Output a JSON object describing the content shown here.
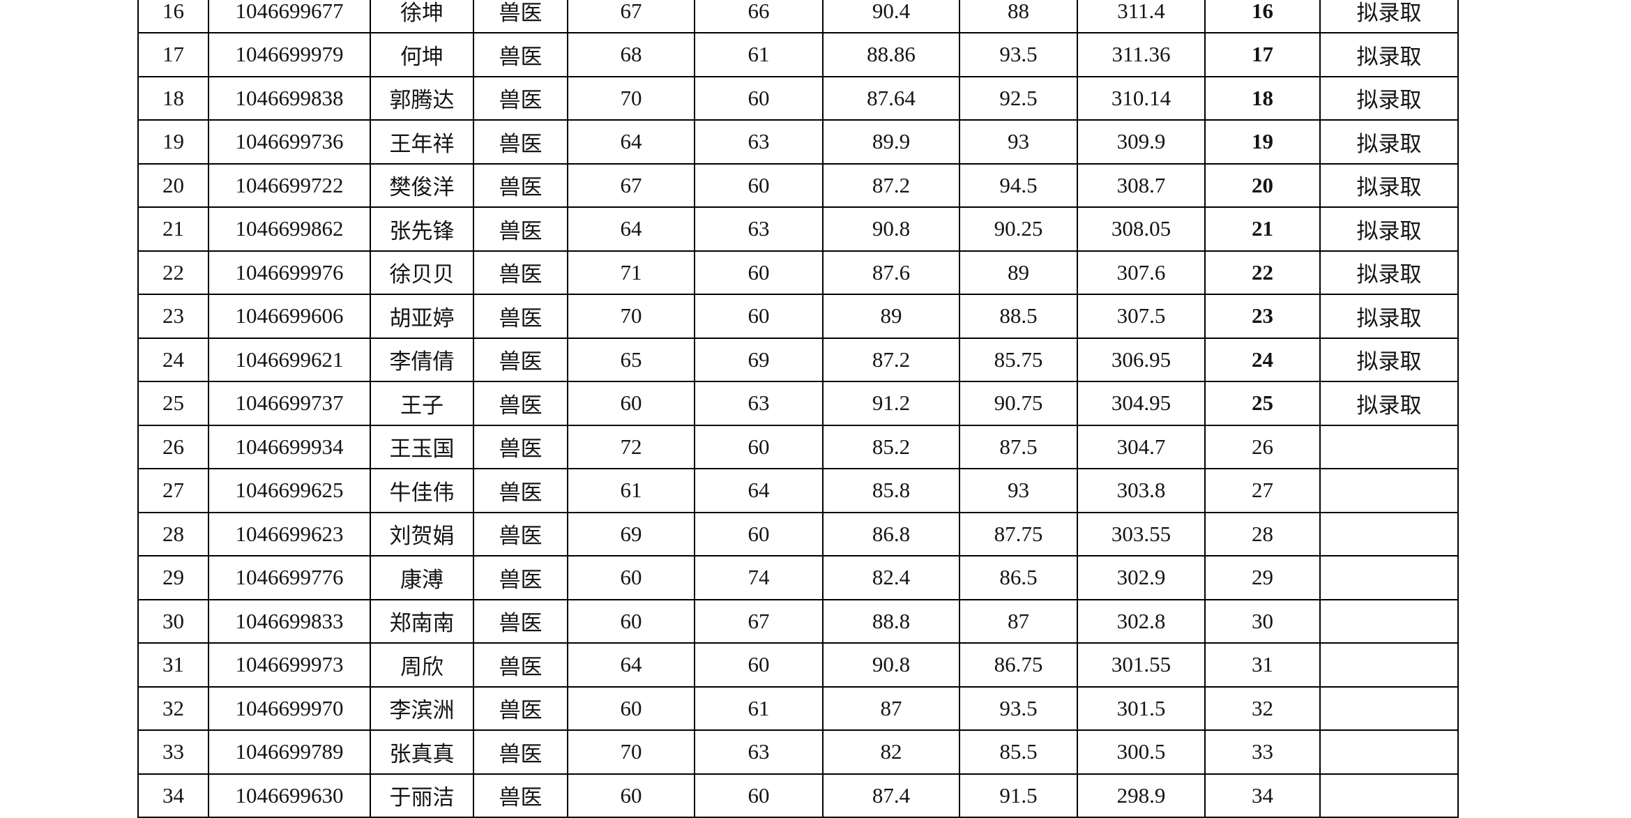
{
  "table": {
    "columns": [
      "seq",
      "candidate_id",
      "name",
      "major",
      "score1",
      "score2",
      "score3",
      "score4",
      "total",
      "rank",
      "status"
    ],
    "status_admitted_label": "拟录取",
    "rows": [
      {
        "seq": "16",
        "candidate_id": "1046699677",
        "name": "徐坤",
        "major": "兽医",
        "score1": "67",
        "score2": "66",
        "score3": "90.4",
        "score4": "88",
        "total": "311.4",
        "rank": "16",
        "status": "拟录取"
      },
      {
        "seq": "17",
        "candidate_id": "1046699979",
        "name": "何坤",
        "major": "兽医",
        "score1": "68",
        "score2": "61",
        "score3": "88.86",
        "score4": "93.5",
        "total": "311.36",
        "rank": "17",
        "status": "拟录取"
      },
      {
        "seq": "18",
        "candidate_id": "1046699838",
        "name": "郭腾达",
        "major": "兽医",
        "score1": "70",
        "score2": "60",
        "score3": "87.64",
        "score4": "92.5",
        "total": "310.14",
        "rank": "18",
        "status": "拟录取"
      },
      {
        "seq": "19",
        "candidate_id": "1046699736",
        "name": "王年祥",
        "major": "兽医",
        "score1": "64",
        "score2": "63",
        "score3": "89.9",
        "score4": "93",
        "total": "309.9",
        "rank": "19",
        "status": "拟录取"
      },
      {
        "seq": "20",
        "candidate_id": "1046699722",
        "name": "樊俊洋",
        "major": "兽医",
        "score1": "67",
        "score2": "60",
        "score3": "87.2",
        "score4": "94.5",
        "total": "308.7",
        "rank": "20",
        "status": "拟录取"
      },
      {
        "seq": "21",
        "candidate_id": "1046699862",
        "name": "张先锋",
        "major": "兽医",
        "score1": "64",
        "score2": "63",
        "score3": "90.8",
        "score4": "90.25",
        "total": "308.05",
        "rank": "21",
        "status": "拟录取"
      },
      {
        "seq": "22",
        "candidate_id": "1046699976",
        "name": "徐贝贝",
        "major": "兽医",
        "score1": "71",
        "score2": "60",
        "score3": "87.6",
        "score4": "89",
        "total": "307.6",
        "rank": "22",
        "status": "拟录取"
      },
      {
        "seq": "23",
        "candidate_id": "1046699606",
        "name": "胡亚婷",
        "major": "兽医",
        "score1": "70",
        "score2": "60",
        "score3": "89",
        "score4": "88.5",
        "total": "307.5",
        "rank": "23",
        "status": "拟录取"
      },
      {
        "seq": "24",
        "candidate_id": "1046699621",
        "name": "李倩倩",
        "major": "兽医",
        "score1": "65",
        "score2": "69",
        "score3": "87.2",
        "score4": "85.75",
        "total": "306.95",
        "rank": "24",
        "status": "拟录取"
      },
      {
        "seq": "25",
        "candidate_id": "1046699737",
        "name": "王子",
        "major": "兽医",
        "score1": "60",
        "score2": "63",
        "score3": "91.2",
        "score4": "90.75",
        "total": "304.95",
        "rank": "25",
        "status": "拟录取"
      },
      {
        "seq": "26",
        "candidate_id": "1046699934",
        "name": "王玉国",
        "major": "兽医",
        "score1": "72",
        "score2": "60",
        "score3": "85.2",
        "score4": "87.5",
        "total": "304.7",
        "rank": "26",
        "status": ""
      },
      {
        "seq": "27",
        "candidate_id": "1046699625",
        "name": "牛佳伟",
        "major": "兽医",
        "score1": "61",
        "score2": "64",
        "score3": "85.8",
        "score4": "93",
        "total": "303.8",
        "rank": "27",
        "status": ""
      },
      {
        "seq": "28",
        "candidate_id": "1046699623",
        "name": "刘贺娟",
        "major": "兽医",
        "score1": "69",
        "score2": "60",
        "score3": "86.8",
        "score4": "87.75",
        "total": "303.55",
        "rank": "28",
        "status": ""
      },
      {
        "seq": "29",
        "candidate_id": "1046699776",
        "name": "康溥",
        "major": "兽医",
        "score1": "60",
        "score2": "74",
        "score3": "82.4",
        "score4": "86.5",
        "total": "302.9",
        "rank": "29",
        "status": ""
      },
      {
        "seq": "30",
        "candidate_id": "1046699833",
        "name": "郑南南",
        "major": "兽医",
        "score1": "60",
        "score2": "67",
        "score3": "88.8",
        "score4": "87",
        "total": "302.8",
        "rank": "30",
        "status": ""
      },
      {
        "seq": "31",
        "candidate_id": "1046699973",
        "name": "周欣",
        "major": "兽医",
        "score1": "64",
        "score2": "60",
        "score3": "90.8",
        "score4": "86.75",
        "total": "301.55",
        "rank": "31",
        "status": ""
      },
      {
        "seq": "32",
        "candidate_id": "1046699970",
        "name": "李滨洲",
        "major": "兽医",
        "score1": "60",
        "score2": "61",
        "score3": "87",
        "score4": "93.5",
        "total": "301.5",
        "rank": "32",
        "status": ""
      },
      {
        "seq": "33",
        "candidate_id": "1046699789",
        "name": "张真真",
        "major": "兽医",
        "score1": "70",
        "score2": "63",
        "score3": "82",
        "score4": "85.5",
        "total": "300.5",
        "rank": "33",
        "status": ""
      },
      {
        "seq": "34",
        "candidate_id": "1046699630",
        "name": "于丽洁",
        "major": "兽医",
        "score1": "60",
        "score2": "60",
        "score3": "87.4",
        "score4": "91.5",
        "total": "298.9",
        "rank": "34",
        "status": ""
      }
    ]
  },
  "colors": {
    "border": "#000000",
    "text": "#141414",
    "background": "#ffffff"
  }
}
